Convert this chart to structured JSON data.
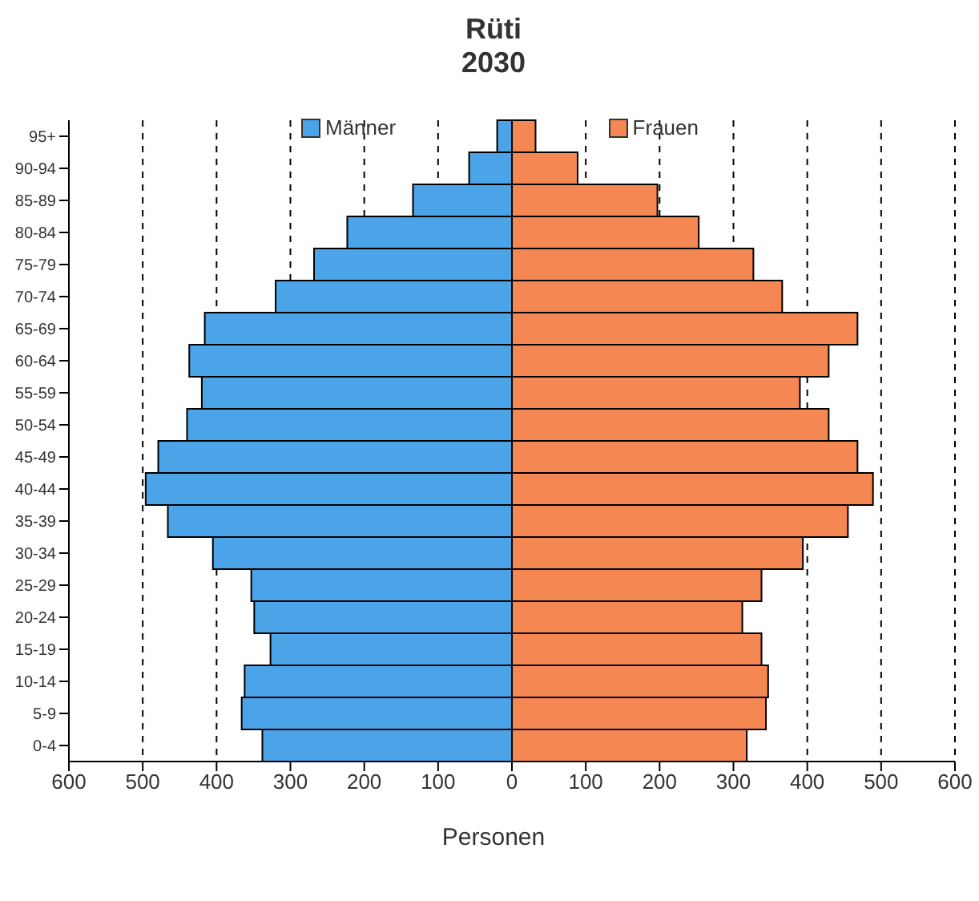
{
  "chart_data": {
    "type": "bar",
    "title": "Rüti",
    "subtitle": "2030",
    "xlabel": "Personen",
    "orientation": "horizontal",
    "stacked": true,
    "categories": [
      "95+",
      "90-94",
      "85-89",
      "80-84",
      "75-79",
      "70-74",
      "65-69",
      "60-64",
      "55-59",
      "50-54",
      "45-49",
      "40-44",
      "35-39",
      "30-34",
      "25-29",
      "20-24",
      "15-19",
      "10-14",
      "5-9",
      "0-4"
    ],
    "series": [
      {
        "name": "Männer",
        "color": "#4ba3e8",
        "values": [
          -20,
          -58,
          -134,
          -223,
          -268,
          -320,
          -416,
          -437,
          -420,
          -440,
          -479,
          -496,
          -466,
          -405,
          -353,
          -349,
          -327,
          -362,
          -366,
          -338
        ]
      },
      {
        "name": "Frauen",
        "color": "#f58753",
        "values": [
          32,
          89,
          197,
          253,
          327,
          366,
          468,
          429,
          390,
          429,
          468,
          489,
          455,
          394,
          338,
          312,
          338,
          347,
          344,
          318
        ]
      }
    ],
    "xlim": [
      -600,
      600
    ],
    "xticks": [
      {
        "value": -600,
        "label": "600"
      },
      {
        "value": -500,
        "label": "500"
      },
      {
        "value": -400,
        "label": "400"
      },
      {
        "value": -300,
        "label": "300"
      },
      {
        "value": -200,
        "label": "200"
      },
      {
        "value": -100,
        "label": "100"
      },
      0,
      100,
      200,
      300,
      400,
      500,
      600
    ],
    "grid": "x",
    "legend": "top"
  }
}
